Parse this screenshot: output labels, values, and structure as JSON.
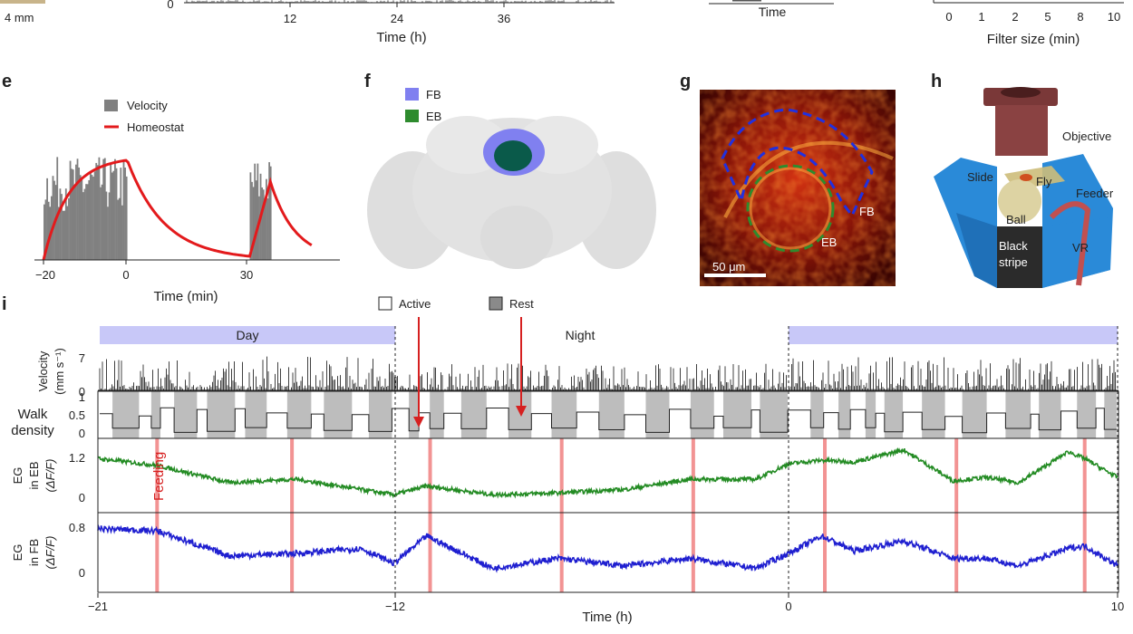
{
  "top_row": {
    "scale_label": "4 mm",
    "panel_a": {
      "xticks": [
        "12",
        "24",
        "36"
      ],
      "ytick_zero": "0",
      "xlabel": "Time (h)"
    },
    "panel_c": {
      "xlabel": "Time"
    },
    "panel_d": {
      "xticks": [
        "0",
        "1",
        "2",
        "5",
        "8",
        "10"
      ],
      "xlabel": "Filter size (min)"
    }
  },
  "panel_e": {
    "label": "e",
    "legend": [
      {
        "name": "Velocity",
        "color": "#808080"
      },
      {
        "name": "Homeostat",
        "color": "#e31a1c"
      }
    ],
    "xticks": [
      "−20",
      "0",
      "30"
    ],
    "xlabel": "Time (min)"
  },
  "panel_f": {
    "label": "f",
    "legend": [
      {
        "name": "FB",
        "color": "#8080f0"
      },
      {
        "name": "EB",
        "color": "#2e8b2e"
      }
    ]
  },
  "panel_g": {
    "label": "g",
    "labels": {
      "fb": "FB",
      "eb": "EB"
    },
    "scalebar": "50 μm"
  },
  "panel_h": {
    "label": "h",
    "labels": {
      "objective": "Objective",
      "slide": "Slide",
      "fly": "Fly",
      "feeder": "Feeder",
      "ball": "Ball",
      "black_stripe_1": "Black",
      "black_stripe_2": "stripe",
      "vr": "VR"
    }
  },
  "panel_i": {
    "label": "i",
    "legend": {
      "active": "Active",
      "rest": "Rest"
    },
    "period_labels": {
      "day": "Day",
      "night": "Night"
    },
    "rows": {
      "velocity": {
        "ylabel1": "Velocity",
        "ylabel2": "(mm s⁻¹)",
        "yticks": [
          "7",
          "0"
        ]
      },
      "walk": {
        "ylabel1": "Walk",
        "ylabel2": "density",
        "yticks": [
          "1",
          "0.5",
          "0"
        ]
      },
      "eb": {
        "ylabel1": "EG",
        "ylabel2": "in EB",
        "ylabel3": "(ΔF/F)",
        "yticks": [
          "1.2",
          "0"
        ]
      },
      "fb": {
        "ylabel1": "EG",
        "ylabel2": "in FB",
        "ylabel3": "(ΔF/F)",
        "yticks": [
          "0.8",
          "0"
        ]
      }
    },
    "feeding_label": "Feeding",
    "xticks": [
      "−21",
      "−12",
      "0",
      "10"
    ],
    "xlabel": "Time (h)"
  },
  "chart_data": [
    {
      "type": "area",
      "panel": "e",
      "xlabel": "Time (min)",
      "x_ticks": [
        -20,
        0,
        30
      ],
      "series": [
        {
          "name": "Velocity",
          "x_range_bouts": [
            [
              -20,
              0
            ],
            [
              30,
              35
            ]
          ]
        },
        {
          "name": "Homeostat",
          "x": [
            -20,
            -10,
            0,
            10,
            20,
            30,
            35,
            45
          ],
          "y": [
            0,
            0.85,
            0.95,
            0.45,
            0.15,
            0.05,
            0.7,
            0.2
          ]
        }
      ]
    },
    {
      "type": "line",
      "panel": "i",
      "xlabel": "Time (h)",
      "xlim": [
        -21,
        10
      ],
      "x_ticks": [
        -21,
        -12,
        0,
        10
      ],
      "periods": [
        {
          "label": "Day",
          "x": [
            -21,
            -12
          ]
        },
        {
          "label": "Night",
          "x": [
            -12,
            0
          ]
        },
        {
          "label": "",
          "x": [
            0,
            10
          ]
        }
      ],
      "feeding_times_h": [
        -19.2,
        -15.1,
        -10.9,
        -6.9,
        -2.9,
        1.1,
        5.1,
        9.0
      ],
      "series": [
        {
          "name": "EG in EB",
          "color": "#238b23",
          "x": [
            -21,
            -19.2,
            -17,
            -15,
            -13,
            -12,
            -11,
            -9,
            -7,
            -5,
            -3,
            -1,
            0,
            1,
            2,
            3.5,
            5,
            6,
            7,
            8.5,
            9,
            10
          ],
          "y": [
            1.15,
            0.95,
            0.45,
            0.55,
            0.25,
            0.1,
            0.35,
            0.1,
            0.15,
            0.25,
            0.55,
            0.55,
            1.0,
            1.1,
            1.05,
            1.4,
            0.5,
            0.6,
            0.45,
            1.35,
            1.15,
            0.6
          ]
        },
        {
          "name": "EG in FB",
          "color": "#1f1fd0",
          "x": [
            -21,
            -19.2,
            -17,
            -15,
            -13,
            -12,
            -11,
            -9,
            -7,
            -5,
            -3,
            -1,
            0,
            1,
            2,
            3.5,
            5,
            6,
            7,
            8.5,
            9,
            10
          ],
          "y": [
            0.9,
            0.85,
            0.35,
            0.4,
            0.5,
            0.2,
            0.75,
            0.1,
            0.3,
            0.15,
            0.3,
            0.1,
            0.4,
            0.75,
            0.45,
            0.65,
            0.3,
            0.3,
            0.15,
            0.5,
            0.55,
            0.15
          ]
        }
      ]
    }
  ]
}
